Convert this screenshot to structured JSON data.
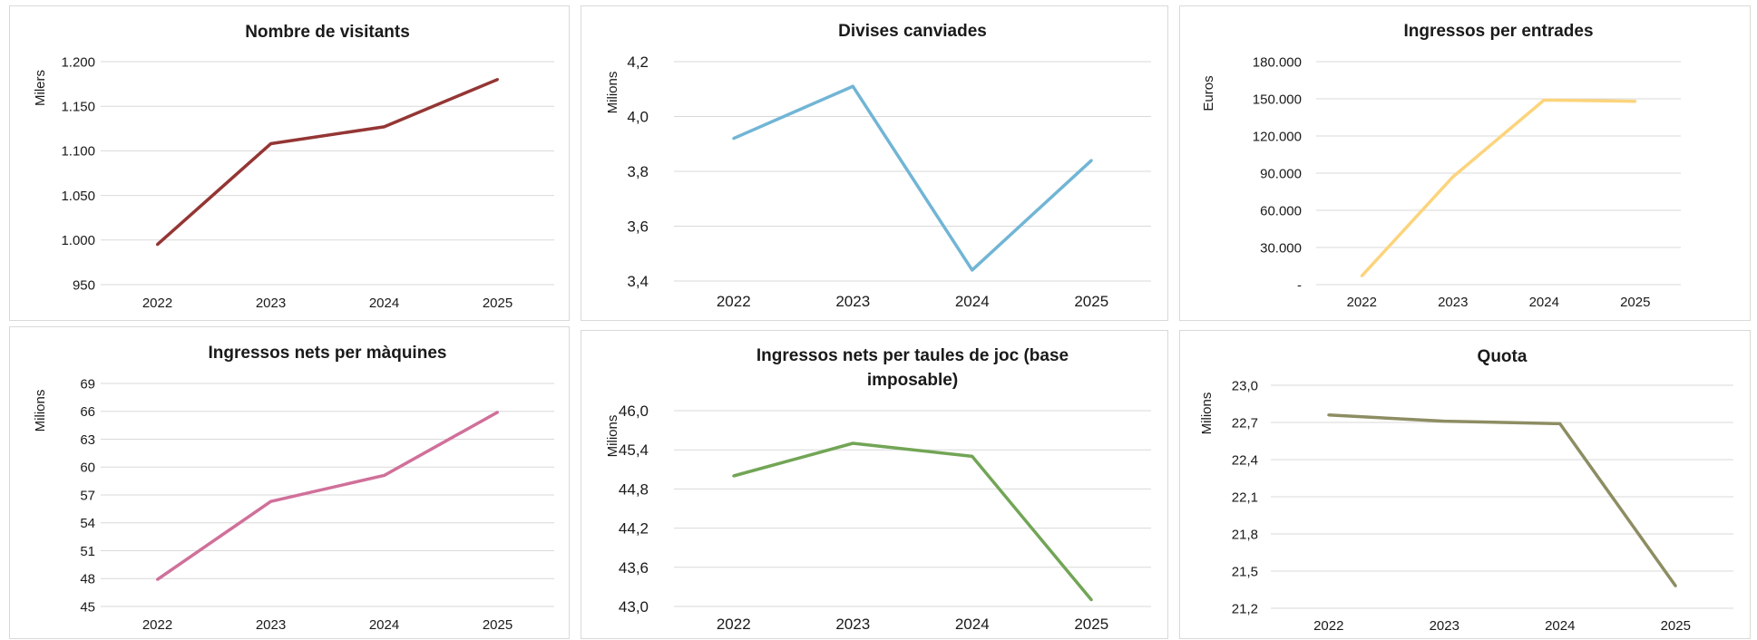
{
  "chart_data": [
    {
      "type": "line",
      "title": "Nombre de visitants",
      "ylabel": "Milers",
      "categories": [
        "2022",
        "2023",
        "2024",
        "2025"
      ],
      "series": [
        {
          "values": [
            995,
            1108,
            1127,
            1180
          ]
        }
      ],
      "ylim": [
        950,
        1200
      ],
      "yticks": [
        950,
        1000,
        1050,
        1100,
        1150,
        1200
      ],
      "ytick_labels": [
        "950",
        "1.000",
        "1.050",
        "1.100",
        "1.150",
        "1.200"
      ],
      "color": "#943634",
      "grid": true,
      "legend": "none"
    },
    {
      "type": "line",
      "title": "Divises canviades",
      "ylabel": "Milions",
      "categories": [
        "2022",
        "2023",
        "2024",
        "2025"
      ],
      "series": [
        {
          "values": [
            3.92,
            4.11,
            3.44,
            3.84
          ]
        }
      ],
      "ylim": [
        3.4,
        4.2
      ],
      "yticks": [
        3.4,
        3.6,
        3.8,
        4.0,
        4.2
      ],
      "ytick_labels": [
        "3,4",
        "3,6",
        "3,8",
        "4,0",
        "4,2"
      ],
      "color": "#71b5d5",
      "grid": true,
      "legend": "none"
    },
    {
      "type": "line",
      "title": "Ingressos per entrades",
      "ylabel": "Euros",
      "categories": [
        "2022",
        "2023",
        "2024",
        "2025"
      ],
      "series": [
        {
          "values": [
            7000,
            87000,
            149000,
            148000
          ]
        }
      ],
      "ylim": [
        0,
        180000
      ],
      "yticks": [
        0,
        30000,
        60000,
        90000,
        120000,
        150000,
        180000
      ],
      "ytick_labels": [
        "-",
        "30.000",
        "60.000",
        "90.000",
        "120.000",
        "150.000",
        "180.000"
      ],
      "color": "#fcd47c",
      "grid": true,
      "legend": "none"
    },
    {
      "type": "line",
      "title": "Ingressos nets per màquines",
      "ylabel": "Milions",
      "categories": [
        "2022",
        "2023",
        "2024",
        "2025"
      ],
      "series": [
        {
          "values": [
            47.9,
            56.3,
            59.1,
            65.9
          ]
        }
      ],
      "ylim": [
        45,
        69
      ],
      "yticks": [
        45,
        48,
        51,
        54,
        57,
        60,
        63,
        66,
        69
      ],
      "ytick_labels": [
        "45",
        "48",
        "51",
        "54",
        "57",
        "60",
        "63",
        "66",
        "69"
      ],
      "color": "#d0709a",
      "grid": true,
      "legend": "none"
    },
    {
      "type": "line",
      "title": [
        "Ingressos nets per taules de joc (base",
        "imposable)"
      ],
      "ylabel": "Milions",
      "categories": [
        "2022",
        "2023",
        "2024",
        "2025"
      ],
      "series": [
        {
          "values": [
            45.0,
            45.5,
            45.3,
            43.1
          ]
        }
      ],
      "ylim": [
        43.0,
        46.0
      ],
      "yticks": [
        43.0,
        43.6,
        44.2,
        44.8,
        45.4,
        46.0
      ],
      "ytick_labels": [
        "43,0",
        "43,6",
        "44,2",
        "44,8",
        "45,4",
        "46,0"
      ],
      "color": "#72a556",
      "grid": true,
      "legend": "none"
    },
    {
      "type": "line",
      "title": "Quota",
      "ylabel": "Milions",
      "categories": [
        "2022",
        "2023",
        "2024",
        "2025"
      ],
      "series": [
        {
          "values": [
            22.76,
            22.71,
            22.69,
            21.38
          ]
        }
      ],
      "ylim": [
        21.2,
        23.0
      ],
      "yticks": [
        21.2,
        21.5,
        21.8,
        22.1,
        22.4,
        22.7,
        23.0
      ],
      "ytick_labels": [
        "21,2",
        "21,5",
        "21,8",
        "22,1",
        "22,4",
        "22,7",
        "23,0"
      ],
      "color": "#8d8d63",
      "grid": true,
      "legend": "none"
    }
  ]
}
